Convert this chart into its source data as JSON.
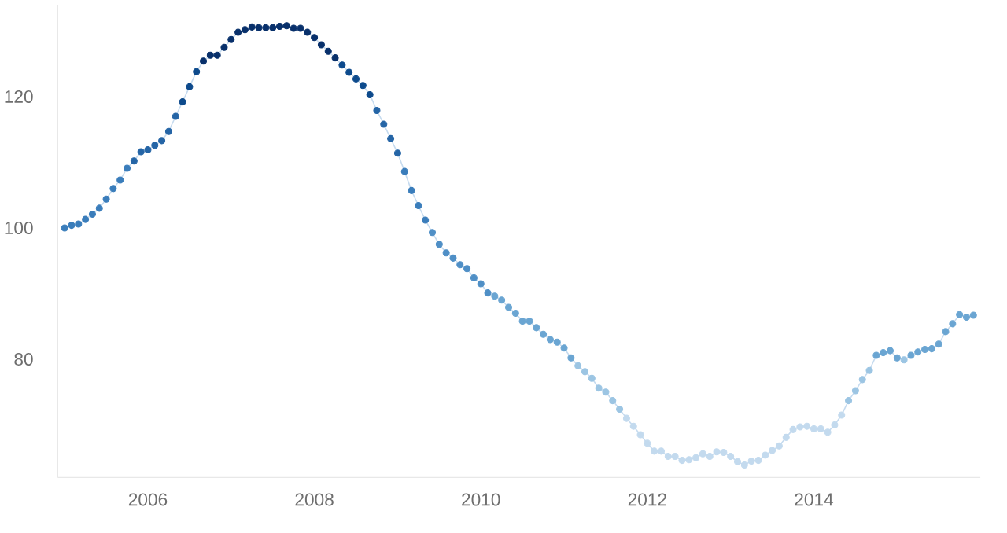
{
  "chart_data": {
    "type": "line",
    "marker": "circle",
    "line_style": "solid",
    "grid": false,
    "legend": false,
    "xlim": [
      "2004-12",
      "2016-01"
    ],
    "xticks": [
      "2006",
      "2008",
      "2010",
      "2012",
      "2014"
    ],
    "ylim": [
      62,
      134
    ],
    "yticks": [
      80,
      100,
      120
    ],
    "x": [
      "2005-01",
      "2005-02",
      "2005-03",
      "2005-04",
      "2005-05",
      "2005-06",
      "2005-07",
      "2005-08",
      "2005-09",
      "2005-10",
      "2005-11",
      "2005-12",
      "2006-01",
      "2006-02",
      "2006-03",
      "2006-04",
      "2006-05",
      "2006-06",
      "2006-07",
      "2006-08",
      "2006-09",
      "2006-10",
      "2006-11",
      "2006-12",
      "2007-01",
      "2007-02",
      "2007-03",
      "2007-04",
      "2007-05",
      "2007-06",
      "2007-07",
      "2007-08",
      "2007-09",
      "2007-10",
      "2007-11",
      "2007-12",
      "2008-01",
      "2008-02",
      "2008-03",
      "2008-04",
      "2008-05",
      "2008-06",
      "2008-07",
      "2008-08",
      "2008-09",
      "2008-10",
      "2008-11",
      "2008-12",
      "2009-01",
      "2009-02",
      "2009-03",
      "2009-04",
      "2009-05",
      "2009-06",
      "2009-07",
      "2009-08",
      "2009-09",
      "2009-10",
      "2009-11",
      "2009-12",
      "2010-01",
      "2010-02",
      "2010-03",
      "2010-04",
      "2010-05",
      "2010-06",
      "2010-07",
      "2010-08",
      "2010-09",
      "2010-10",
      "2010-11",
      "2010-12",
      "2011-01",
      "2011-02",
      "2011-03",
      "2011-04",
      "2011-05",
      "2011-06",
      "2011-07",
      "2011-08",
      "2011-09",
      "2011-10",
      "2011-11",
      "2011-12",
      "2012-01",
      "2012-02",
      "2012-03",
      "2012-04",
      "2012-05",
      "2012-06",
      "2012-07",
      "2012-08",
      "2012-09",
      "2012-10",
      "2012-11",
      "2012-12",
      "2013-01",
      "2013-02",
      "2013-03",
      "2013-04",
      "2013-05",
      "2013-06",
      "2013-07",
      "2013-08",
      "2013-09",
      "2013-10",
      "2013-11",
      "2013-12",
      "2014-01",
      "2014-02",
      "2014-03",
      "2014-04",
      "2014-05",
      "2014-06",
      "2014-07",
      "2014-08",
      "2014-09",
      "2014-10",
      "2014-11",
      "2014-12",
      "2015-01",
      "2015-02",
      "2015-03",
      "2015-04",
      "2015-05",
      "2015-06",
      "2015-07",
      "2015-08",
      "2015-09",
      "2015-10",
      "2015-11",
      "2015-12"
    ],
    "series": [
      {
        "color": "#c6dbef",
        "values": [
          100.0,
          100.4,
          100.6,
          101.3,
          102.1,
          103.0,
          104.4,
          106.0,
          107.3,
          109.1,
          110.2,
          111.6,
          111.9,
          112.6,
          113.3,
          114.7,
          117.0,
          119.2,
          121.5,
          123.8,
          125.4,
          126.3,
          126.3,
          127.5,
          128.7,
          129.8,
          130.2,
          130.6,
          130.5,
          130.5,
          130.5,
          130.7,
          130.8,
          130.4,
          130.4,
          129.8,
          129.0,
          127.9,
          126.9,
          125.9,
          124.8,
          123.7,
          122.7,
          121.7,
          120.3,
          117.9,
          115.8,
          113.6,
          111.4,
          108.6,
          105.7,
          103.4,
          101.2,
          99.3,
          97.5,
          96.2,
          95.4,
          94.4,
          93.8,
          92.4,
          91.5,
          90.1,
          89.6,
          89.0,
          87.9,
          87.0,
          85.8,
          85.8,
          84.8,
          83.8,
          83.0,
          82.6,
          81.7,
          80.2,
          79.0,
          78.1,
          77.1,
          75.6,
          75.0,
          73.7,
          72.4,
          71.0,
          69.8,
          68.5,
          67.2,
          66.0,
          66.0,
          65.2,
          65.2,
          64.6,
          64.7,
          65.0,
          65.6,
          65.2,
          65.9,
          65.8,
          65.2,
          64.4,
          63.9,
          64.5,
          64.6,
          65.4,
          66.1,
          66.8,
          68.1,
          69.3,
          69.7,
          69.8,
          69.4,
          69.4,
          68.9,
          70.0,
          71.5,
          73.7,
          75.2,
          76.9,
          78.3,
          80.6,
          81.0,
          81.3,
          80.2,
          79.9,
          80.6,
          81.1,
          81.5,
          81.6,
          82.3,
          84.2,
          85.4,
          86.8,
          86.4,
          86.7
        ],
        "colors": [
          "#3a7dbb",
          "#3a7dbb",
          "#3a7dbb",
          "#3a7dbb",
          "#3a7dbb",
          "#3a7dbb",
          "#3a7dbb",
          "#3a7dbb",
          "#3a7dbb",
          "#3a7dbb",
          "#2565a6",
          "#2565a6",
          "#2565a6",
          "#2565a6",
          "#2565a6",
          "#2565a6",
          "#2565a6",
          "#0d4a8c",
          "#0d4a8c",
          "#0d4a8c",
          "#08306b",
          "#08306b",
          "#08306b",
          "#08306b",
          "#08306b",
          "#08306b",
          "#08306b",
          "#08306b",
          "#08306b",
          "#08306b",
          "#08306b",
          "#08306b",
          "#08306b",
          "#08306b",
          "#08306b",
          "#08306b",
          "#08306b",
          "#08306b",
          "#08306b",
          "#08306b",
          "#0d4a8c",
          "#0d4a8c",
          "#0d4a8c",
          "#0d4a8c",
          "#0d4a8c",
          "#2565a6",
          "#2565a6",
          "#2565a6",
          "#2565a6",
          "#3a7dbb",
          "#3a7dbb",
          "#3a7dbb",
          "#3a7dbb",
          "#4f8fc6",
          "#4f8fc6",
          "#4f8fc6",
          "#4f8fc6",
          "#4f8fc6",
          "#4f8fc6",
          "#4f8fc6",
          "#4f8fc6",
          "#4f8fc6",
          "#6aa5d2",
          "#6aa5d2",
          "#6aa5d2",
          "#6aa5d2",
          "#6aa5d2",
          "#6aa5d2",
          "#6aa5d2",
          "#6aa5d2",
          "#6aa5d2",
          "#6aa5d2",
          "#6aa5d2",
          "#6aa5d2",
          "#9cc5e3",
          "#9cc5e3",
          "#9cc5e3",
          "#9cc5e3",
          "#9cc5e3",
          "#9cc5e3",
          "#9cc5e3",
          "#c3daee",
          "#c3daee",
          "#c3daee",
          "#c3daee",
          "#c3daee",
          "#c3daee",
          "#c3daee",
          "#c3daee",
          "#c3daee",
          "#c3daee",
          "#c3daee",
          "#c3daee",
          "#c3daee",
          "#c3daee",
          "#c3daee",
          "#c3daee",
          "#c3daee",
          "#c3daee",
          "#c3daee",
          "#c3daee",
          "#c3daee",
          "#c3daee",
          "#c3daee",
          "#c3daee",
          "#c3daee",
          "#c3daee",
          "#c3daee",
          "#c3daee",
          "#c3daee",
          "#c3daee",
          "#c3daee",
          "#c3daee",
          "#9cc5e3",
          "#9cc5e3",
          "#9cc5e3",
          "#9cc5e3",
          "#6aa5d2",
          "#6aa5d2",
          "#6aa5d2",
          "#6aa5d2",
          "#9cc5e3",
          "#6aa5d2",
          "#6aa5d2",
          "#6aa5d2",
          "#6aa5d2",
          "#6aa5d2",
          "#6aa5d2",
          "#6aa5d2",
          "#6aa5d2",
          "#6aa5d2",
          "#6aa5d2"
        ]
      }
    ]
  }
}
